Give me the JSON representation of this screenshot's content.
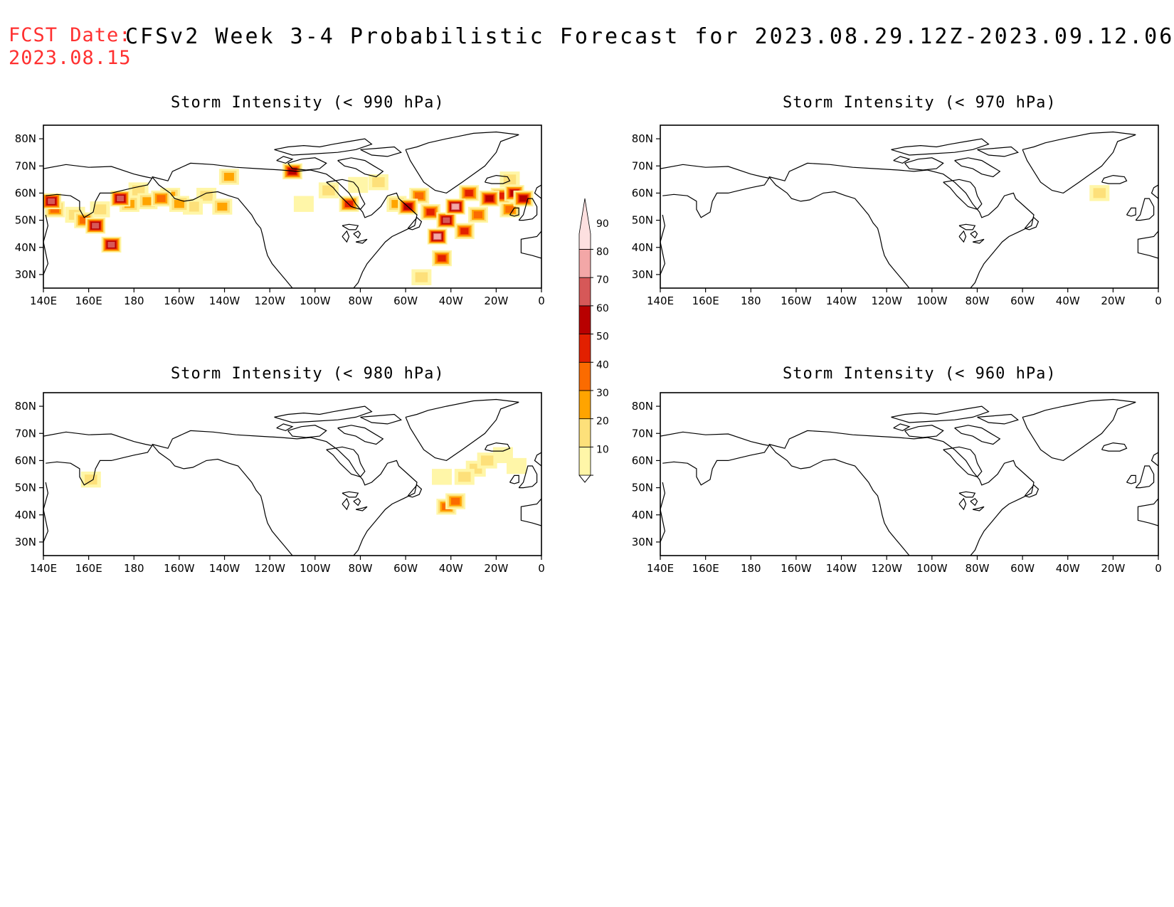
{
  "header": {
    "fcst_label": "FCST Date:",
    "fcst_date": "2023.08.15",
    "title": "CFSv2 Week 3-4 Probabilistic Forecast for 2023.08.29.12Z-2023.09.12.06Z"
  },
  "axes": {
    "lon_labels": [
      "140E",
      "160E",
      "180",
      "160W",
      "140W",
      "120W",
      "100W",
      "80W",
      "60W",
      "40W",
      "20W",
      "0"
    ],
    "lon_values": [
      140,
      160,
      180,
      200,
      220,
      240,
      260,
      280,
      300,
      320,
      340,
      360
    ],
    "lat_labels": [
      "80N",
      "70N",
      "60N",
      "50N",
      "40N",
      "30N"
    ],
    "lat_values": [
      80,
      70,
      60,
      50,
      40,
      30
    ],
    "lon_range": [
      140,
      360
    ],
    "lat_range": [
      25,
      85
    ]
  },
  "colorbar": {
    "levels": [
      10,
      20,
      30,
      40,
      50,
      60,
      70,
      80,
      90
    ],
    "labels": [
      "10",
      "20",
      "30",
      "40",
      "50",
      "60",
      "70",
      "80",
      "90"
    ],
    "colors": [
      "#fff6a8",
      "#fde07a",
      "#ffa400",
      "#fb6b00",
      "#e22000",
      "#b80000",
      "#d65858",
      "#f3a7a7",
      "#fde0e0"
    ],
    "label_color": "#000000"
  },
  "panels": [
    {
      "title": "Storm Intensity (< 990 hPa)",
      "blobs": [
        {
          "lon": 143.5,
          "lat": 57,
          "p": 75
        },
        {
          "lon": 145,
          "lat": 54,
          "p": 40
        },
        {
          "lon": 154,
          "lat": 52,
          "p": 25
        },
        {
          "lon": 158,
          "lat": 50,
          "p": 45
        },
        {
          "lon": 163,
          "lat": 48,
          "p": 75
        },
        {
          "lon": 165,
          "lat": 54,
          "p": 20
        },
        {
          "lon": 170,
          "lat": 41,
          "p": 75
        },
        {
          "lon": 174,
          "lat": 58,
          "p": 75
        },
        {
          "lon": 178,
          "lat": 56,
          "p": 35
        },
        {
          "lon": 182,
          "lat": 61,
          "p": 20
        },
        {
          "lon": 186,
          "lat": 57,
          "p": 30
        },
        {
          "lon": 192,
          "lat": 58,
          "p": 40
        },
        {
          "lon": 196,
          "lat": 59,
          "p": 35
        },
        {
          "lon": 200,
          "lat": 56,
          "p": 35
        },
        {
          "lon": 206,
          "lat": 55,
          "p": 25
        },
        {
          "lon": 212,
          "lat": 59,
          "p": 20
        },
        {
          "lon": 219,
          "lat": 55,
          "p": 35
        },
        {
          "lon": 222,
          "lat": 66,
          "p": 35
        },
        {
          "lon": 250,
          "lat": 68,
          "p": 60
        },
        {
          "lon": 255,
          "lat": 56,
          "p": 15
        },
        {
          "lon": 266,
          "lat": 61,
          "p": 20
        },
        {
          "lon": 275,
          "lat": 56,
          "p": 55
        },
        {
          "lon": 279,
          "lat": 63,
          "p": 15
        },
        {
          "lon": 288,
          "lat": 64,
          "p": 20
        },
        {
          "lon": 296,
          "lat": 56,
          "p": 35
        },
        {
          "lon": 301,
          "lat": 55,
          "p": 60
        },
        {
          "lon": 306,
          "lat": 59,
          "p": 40
        },
        {
          "lon": 311,
          "lat": 53,
          "p": 55
        },
        {
          "lon": 314,
          "lat": 44,
          "p": 80
        },
        {
          "lon": 316,
          "lat": 36,
          "p": 55
        },
        {
          "lon": 318,
          "lat": 50,
          "p": 75
        },
        {
          "lon": 322,
          "lat": 55,
          "p": 80
        },
        {
          "lon": 326,
          "lat": 46,
          "p": 50
        },
        {
          "lon": 328,
          "lat": 60,
          "p": 55
        },
        {
          "lon": 332,
          "lat": 52,
          "p": 45
        },
        {
          "lon": 337,
          "lat": 58,
          "p": 60
        },
        {
          "lon": 342,
          "lat": 59,
          "p": 55
        },
        {
          "lon": 346,
          "lat": 54,
          "p": 45
        },
        {
          "lon": 348,
          "lat": 60,
          "p": 65
        },
        {
          "lon": 352,
          "lat": 58,
          "p": 65
        },
        {
          "lon": 346,
          "lat": 65,
          "p": 25
        },
        {
          "lon": 307,
          "lat": 29,
          "p": 20
        }
      ]
    },
    {
      "title": "Storm Intensity (< 970 hPa)",
      "blobs": [
        {
          "lon": 334,
          "lat": 60,
          "p": 25
        }
      ]
    },
    {
      "title": "Storm Intensity (< 980 hPa)",
      "blobs": [
        {
          "lon": 161,
          "lat": 53,
          "p": 25
        },
        {
          "lon": 318,
          "lat": 43,
          "p": 45
        },
        {
          "lon": 322,
          "lat": 45,
          "p": 45
        },
        {
          "lon": 326,
          "lat": 54,
          "p": 25
        },
        {
          "lon": 331,
          "lat": 57,
          "p": 20
        },
        {
          "lon": 336,
          "lat": 60,
          "p": 25
        },
        {
          "lon": 343,
          "lat": 62,
          "p": 15
        },
        {
          "lon": 349,
          "lat": 58,
          "p": 15
        },
        {
          "lon": 316,
          "lat": 54,
          "p": 15
        }
      ]
    },
    {
      "title": "Storm Intensity (< 960 hPa)",
      "blobs": []
    }
  ]
}
